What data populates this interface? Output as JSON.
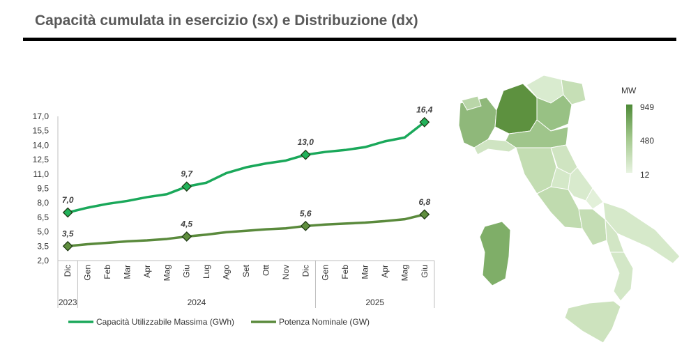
{
  "title": "Capacità cumulata in esercizio (sx) e Distribuzione (dx)",
  "chart_data": [
    {
      "type": "line",
      "title": "",
      "x": [
        "Dic",
        "Gen",
        "Feb",
        "Mar",
        "Apr",
        "Mag",
        "Giu",
        "Lug",
        "Ago",
        "Set",
        "Ott",
        "Nov",
        "Dic",
        "Gen",
        "Feb",
        "Mar",
        "Apr",
        "Mag",
        "Giu"
      ],
      "year_groups": [
        {
          "label": "2023",
          "start": 0,
          "end": 0
        },
        {
          "label": "2024",
          "start": 1,
          "end": 12
        },
        {
          "label": "2025",
          "start": 13,
          "end": 18
        }
      ],
      "yticks": [
        "2,0",
        "3,5",
        "5,0",
        "6,5",
        "8,0",
        "9,5",
        "11,0",
        "12,5",
        "14,0",
        "15,5",
        "17,0"
      ],
      "ylim": [
        2.0,
        17.0
      ],
      "grid": false,
      "legend_position": "bottom",
      "series": [
        {
          "name": "Capacità Utilizzabile Massima (GWh)",
          "color": "#1aa85a",
          "values": [
            7.0,
            7.5,
            7.9,
            8.2,
            8.6,
            8.9,
            9.7,
            10.1,
            11.1,
            11.7,
            12.1,
            12.4,
            13.0,
            13.3,
            13.5,
            13.8,
            14.4,
            14.8,
            16.4
          ],
          "labels": {
            "0": "7,0",
            "6": "9,7",
            "12": "13,0",
            "18": "16,4"
          }
        },
        {
          "name": "Potenza Nominale (GW)",
          "color": "#5a8a3c",
          "values": [
            3.5,
            3.7,
            3.85,
            4.0,
            4.1,
            4.25,
            4.5,
            4.7,
            4.95,
            5.1,
            5.25,
            5.35,
            5.6,
            5.75,
            5.85,
            5.95,
            6.1,
            6.3,
            6.8
          ],
          "labels": {
            "0": "3,5",
            "6": "4,5",
            "12": "5,6",
            "18": "6,8"
          }
        }
      ]
    },
    {
      "type": "heatmap",
      "title": "",
      "unit": "MW",
      "scale_labels": [
        "949",
        "480",
        "12"
      ],
      "scale_colors": [
        "#4e8a37",
        "#a4c98e",
        "#e8f3e1"
      ]
    }
  ]
}
